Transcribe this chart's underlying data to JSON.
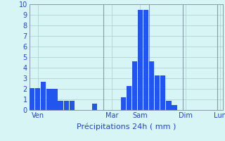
{
  "bar_values": [
    2.1,
    2.1,
    2.7,
    2.0,
    2.0,
    0.9,
    0.9,
    0.9,
    0,
    0,
    0,
    0.6,
    0,
    0,
    0,
    0,
    1.2,
    2.3,
    4.6,
    9.5,
    9.5,
    4.6,
    3.3,
    3.3,
    0.9,
    0.5,
    0,
    0,
    0,
    0,
    0,
    0,
    0,
    0
  ],
  "num_bars": 34,
  "bar_color": "#2255ee",
  "background_color": "#d8f5f5",
  "plot_bg_color": "#d8f5f5",
  "grid_color": "#aacccc",
  "tick_label_color": "#2244cc",
  "xlabel": "Précipitations 24h ( mm )",
  "xlabel_color": "#2244cc",
  "xlabel_fontsize": 8,
  "tick_fontsize": 7,
  "ylim": [
    0,
    10
  ],
  "yticks": [
    0,
    1,
    2,
    3,
    4,
    5,
    6,
    7,
    8,
    9,
    10
  ],
  "day_labels": [
    "Ven",
    "Mar",
    "Sam",
    "Dim",
    "Lun"
  ],
  "day_tick_positions": [
    1,
    14,
    19,
    27,
    33
  ],
  "day_vline_positions": [
    0,
    13,
    21,
    27,
    33
  ]
}
